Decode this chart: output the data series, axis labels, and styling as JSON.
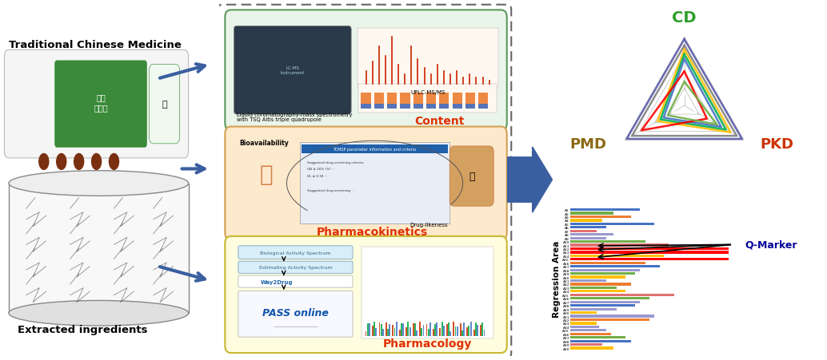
{
  "background_color": "#ffffff",
  "left_text_tcm": "Traditional Chinese Medicine",
  "left_text_extracted": "Extracted ingredients",
  "middle_box_outer_color": "#555555",
  "box1_bg": "#eaf5ea",
  "box1_border": "#5a9a5a",
  "box1_label": "Content",
  "box1_label_color": "#e03000",
  "box1_text1": "Liquid chromatography-mass spectrometry",
  "box1_text2": "with TSQ Altis triple quadrupole",
  "box1_uplc": "UPLC-MS/MS",
  "box2_bg": "#fde9cc",
  "box2_border": "#d4a050",
  "box2_label": "Pharmacokinetics",
  "box2_label_color": "#e03000",
  "box2_bio": "Bioavailability",
  "box2_drug": "Drug-likeness",
  "box3_bg": "#fefde0",
  "box3_border": "#c8b830",
  "box3_label": "Pharmacology",
  "box3_label_color": "#e03000",
  "box3_t1": "Biological Activity Spectrum",
  "box3_t2": "Estimating Activity Spectrum",
  "box3_t3": "Way2Drug",
  "box3_t4": "PASS online",
  "arrow_color": "#3a5fa0",
  "radar_cd_color": "#2d9e2d",
  "radar_pmd_color": "#8b6914",
  "radar_pkd_color": "#cc3300",
  "radar_series": [
    {
      "color": "#5a5aaa",
      "scales": [
        0.97,
        0.97,
        0.97
      ]
    },
    {
      "color": "#808080",
      "scales": [
        0.88,
        0.88,
        0.88
      ]
    },
    {
      "color": "#ffc000",
      "scales": [
        0.82,
        0.45,
        0.78
      ]
    },
    {
      "color": "#00b050",
      "scales": [
        0.75,
        0.4,
        0.7
      ]
    },
    {
      "color": "#4472c4",
      "scales": [
        0.68,
        0.35,
        0.62
      ]
    },
    {
      "color": "#ff0000",
      "scales": [
        0.5,
        0.72,
        0.38
      ]
    },
    {
      "color": "#70ad47",
      "scales": [
        0.35,
        0.28,
        0.55
      ]
    },
    {
      "color": "#ffffff",
      "scales": [
        0.2,
        0.2,
        0.2
      ]
    }
  ],
  "bar_labels": [
    "A40",
    "A39",
    "A38",
    "A37",
    "A36",
    "A35",
    "A34",
    "A33",
    "A32",
    "A31",
    "A30",
    "A29",
    "A28",
    "A27",
    "A26",
    "A25",
    "A24",
    "A23",
    "A22",
    "A21",
    "A20",
    "A19",
    "A18",
    "A17",
    "A16",
    "A15",
    "A14",
    "A13",
    "A12",
    "A11",
    "A10",
    "A9",
    "A8",
    "A7",
    "A6",
    "A5",
    "A4",
    "A3",
    "A2",
    "A1"
  ],
  "bar_data": [
    [
      0.3,
      "#ffc000"
    ],
    [
      0.22,
      "#e07070"
    ],
    [
      0.42,
      "#4472c4"
    ],
    [
      0.38,
      "#70ad47"
    ],
    [
      0.28,
      "#ed7d31"
    ],
    [
      0.25,
      "#9999cc"
    ],
    [
      0.2,
      "#9999cc"
    ],
    [
      0.18,
      "#ffc000"
    ],
    [
      0.55,
      "#ed7d31"
    ],
    [
      0.58,
      "#9999cc"
    ],
    [
      0.18,
      "#ffc000"
    ],
    [
      0.32,
      "#9999cc"
    ],
    [
      0.45,
      "#4472c4"
    ],
    [
      0.48,
      "#9999cc"
    ],
    [
      0.55,
      "#70ad47"
    ],
    [
      0.72,
      "#e07070"
    ],
    [
      0.38,
      "#ffc000"
    ],
    [
      0.32,
      "#70ad47"
    ],
    [
      0.42,
      "#ed7d31"
    ],
    [
      0.25,
      "#9999cc"
    ],
    [
      0.38,
      "#ffc000"
    ],
    [
      0.45,
      "#70ad47"
    ],
    [
      0.48,
      "#9999cc"
    ],
    [
      0.62,
      "#4472c4"
    ],
    [
      0.52,
      "#ed7d31"
    ],
    [
      1.05,
      "#ff0000"
    ],
    [
      0.65,
      "#ffc000"
    ],
    [
      0.55,
      "#70ad47"
    ],
    [
      0.72,
      "#ed7d31"
    ],
    [
      0.68,
      "#e07070"
    ],
    [
      0.52,
      "#70ad47"
    ],
    [
      0.25,
      "#9999cc"
    ],
    [
      0.3,
      "#9999cc"
    ],
    [
      0.18,
      "#e07070"
    ],
    [
      0.25,
      "#4472c4"
    ],
    [
      0.58,
      "#4472c4"
    ],
    [
      0.22,
      "#ffc000"
    ],
    [
      0.42,
      "#ed7d31"
    ],
    [
      0.3,
      "#70ad47"
    ],
    [
      0.48,
      "#4472c4"
    ]
  ],
  "qmarker_bars": [
    14,
    12,
    11
  ],
  "qmarker_text": "Q-Marker",
  "qmarker_color": "#000099",
  "regression_label": "Regression Area"
}
